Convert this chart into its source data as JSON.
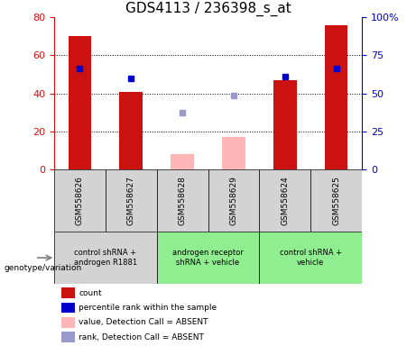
{
  "title": "GDS4113 / 236398_s_at",
  "samples": [
    "GSM558626",
    "GSM558627",
    "GSM558628",
    "GSM558629",
    "GSM558624",
    "GSM558625"
  ],
  "red_bars": [
    70,
    41,
    null,
    null,
    47,
    76
  ],
  "pink_bars": [
    null,
    null,
    8,
    17,
    null,
    null
  ],
  "blue_squares_left": [
    53,
    48,
    null,
    null,
    49,
    53
  ],
  "lavender_squares_left": [
    null,
    null,
    30,
    39,
    null,
    null
  ],
  "ylim_left": [
    0,
    80
  ],
  "yticks_left": [
    0,
    20,
    40,
    60,
    80
  ],
  "ytick_labels_right": [
    "0",
    "25",
    "50",
    "75",
    "100%"
  ],
  "yticks_right_pos": [
    0,
    20,
    40,
    60,
    80
  ],
  "group_labels": [
    "control shRNA +\nandrogen R1881",
    "androgen receptor\nshRNA + vehicle",
    "control shRNA +\nvehicle"
  ],
  "group_ranges": [
    [
      0,
      2
    ],
    [
      2,
      4
    ],
    [
      4,
      6
    ]
  ],
  "group_colors": [
    "#d3d3d3",
    "#90ee90",
    "#90ee90"
  ],
  "sample_bg_color": "#d3d3d3",
  "bar_width": 0.45,
  "red_color": "#cc1111",
  "pink_color": "#ffb6b6",
  "blue_color": "#0000cc",
  "lavender_color": "#9999cc",
  "title_fontsize": 11,
  "genotype_label": "genotype/variation",
  "legend_items": [
    {
      "color": "#cc1111",
      "label": "count",
      "marker": "square"
    },
    {
      "color": "#0000cc",
      "label": "percentile rank within the sample",
      "marker": "square"
    },
    {
      "color": "#ffb6b6",
      "label": "value, Detection Call = ABSENT",
      "marker": "square"
    },
    {
      "color": "#9999cc",
      "label": "rank, Detection Call = ABSENT",
      "marker": "square"
    }
  ]
}
